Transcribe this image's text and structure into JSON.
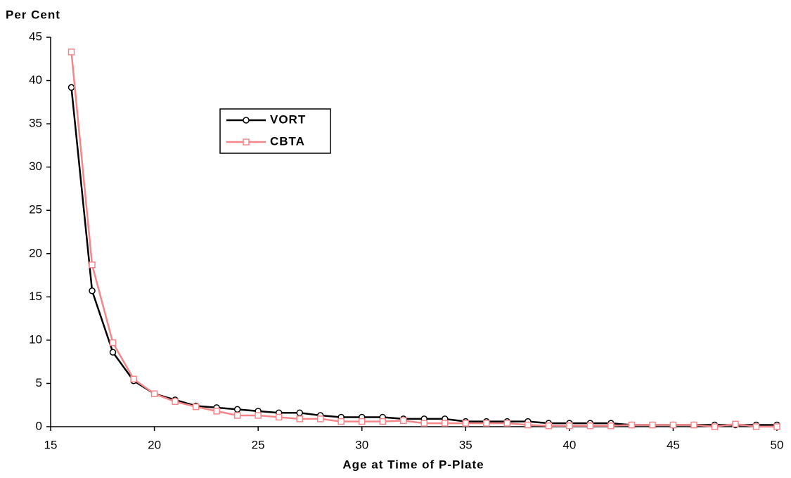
{
  "chart_data": {
    "type": "line",
    "y_label": "Per Cent",
    "x_label": "Age at Time of P-Plate",
    "x": [
      16,
      17,
      18,
      19,
      20,
      21,
      22,
      23,
      24,
      25,
      26,
      27,
      28,
      29,
      30,
      31,
      32,
      33,
      34,
      35,
      36,
      37,
      38,
      39,
      40,
      41,
      42,
      43,
      44,
      45,
      46,
      47,
      48,
      49,
      50
    ],
    "series": [
      {
        "name": "VORT",
        "color": "#000000",
        "marker": "circle",
        "values": [
          39.2,
          15.7,
          8.6,
          5.3,
          3.8,
          3.1,
          2.4,
          2.2,
          2.0,
          1.8,
          1.6,
          1.6,
          1.3,
          1.1,
          1.1,
          1.1,
          0.9,
          0.9,
          0.9,
          0.6,
          0.6,
          0.6,
          0.6,
          0.4,
          0.4,
          0.4,
          0.4,
          0.2,
          0.2,
          0.2,
          0.2,
          0.2,
          0.2,
          0.2,
          0.2
        ]
      },
      {
        "name": "CBTA",
        "color": "#f4868a",
        "marker": "square",
        "values": [
          43.3,
          18.7,
          9.7,
          5.5,
          3.8,
          2.9,
          2.3,
          1.8,
          1.3,
          1.3,
          1.1,
          0.9,
          0.9,
          0.6,
          0.6,
          0.6,
          0.7,
          0.4,
          0.4,
          0.4,
          0.4,
          0.4,
          0.2,
          0.1,
          0.1,
          0.1,
          0.1,
          0.2,
          0.2,
          0.2,
          0.2,
          0.0,
          0.3,
          0.0,
          0.0
        ]
      }
    ],
    "xlim": [
      15,
      50
    ],
    "xticks": [
      15,
      20,
      25,
      30,
      35,
      40,
      45,
      50
    ],
    "ylim": [
      0,
      45
    ],
    "yticks": [
      0,
      5,
      10,
      15,
      20,
      25,
      30,
      35,
      40,
      45
    ],
    "grid": false
  }
}
